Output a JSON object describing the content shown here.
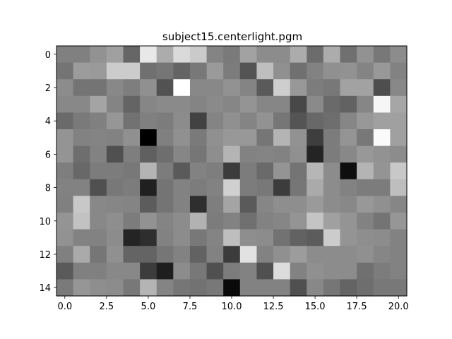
{
  "chart_data": {
    "type": "heatmap",
    "title": "subject15.centerlight.pgm",
    "colormap": "gray",
    "xlabel": "",
    "ylabel": "",
    "xlim": [
      -0.5,
      20.5
    ],
    "ylim": [
      14.5,
      -0.5
    ],
    "xticks": [
      0,
      2.5,
      5,
      7.5,
      10,
      12.5,
      15,
      17.5,
      20
    ],
    "xtick_labels": [
      "0.0",
      "2.5",
      "5.0",
      "7.5",
      "10.0",
      "12.5",
      "15.0",
      "17.5",
      "20.0"
    ],
    "yticks": [
      0,
      2,
      4,
      6,
      8,
      10,
      12,
      14
    ],
    "ytick_labels": [
      "0",
      "2",
      "4",
      "6",
      "8",
      "10",
      "12",
      "14"
    ],
    "grid": false,
    "rows": 15,
    "cols": 21,
    "values": [
      [
        128,
        128,
        146,
        160,
        102,
        232,
        172,
        218,
        202,
        132,
        122,
        162,
        140,
        140,
        172,
        108,
        172,
        112,
        146,
        120,
        140
      ],
      [
        116,
        156,
        154,
        204,
        204,
        112,
        118,
        100,
        120,
        154,
        124,
        84,
        190,
        144,
        112,
        130,
        144,
        146,
        132,
        152,
        130
      ],
      [
        140,
        116,
        116,
        136,
        126,
        144,
        82,
        255,
        136,
        136,
        146,
        132,
        90,
        206,
        152,
        124,
        120,
        162,
        162,
        78,
        136
      ],
      [
        136,
        136,
        164,
        132,
        100,
        134,
        138,
        138,
        132,
        138,
        134,
        148,
        134,
        134,
        72,
        138,
        106,
        98,
        134,
        246,
        166
      ],
      [
        106,
        122,
        128,
        150,
        114,
        128,
        124,
        140,
        66,
        132,
        144,
        132,
        146,
        118,
        84,
        104,
        110,
        134,
        152,
        160,
        160
      ],
      [
        148,
        130,
        132,
        130,
        144,
        0,
        128,
        144,
        122,
        144,
        152,
        152,
        118,
        180,
        146,
        62,
        124,
        148,
        120,
        250,
        160
      ],
      [
        148,
        110,
        130,
        80,
        126,
        96,
        110,
        134,
        118,
        142,
        180,
        130,
        132,
        130,
        144,
        36,
        124,
        136,
        152,
        146,
        140
      ],
      [
        126,
        104,
        124,
        124,
        120,
        180,
        124,
        90,
        130,
        126,
        60,
        124,
        106,
        148,
        116,
        182,
        140,
        14,
        180,
        148,
        200
      ],
      [
        130,
        130,
        80,
        120,
        124,
        32,
        116,
        130,
        124,
        130,
        208,
        124,
        120,
        60,
        118,
        170,
        140,
        130,
        124,
        124,
        190
      ],
      [
        128,
        200,
        136,
        134,
        132,
        92,
        116,
        130,
        46,
        126,
        164,
        90,
        134,
        142,
        142,
        154,
        140,
        136,
        152,
        144,
        134
      ],
      [
        148,
        194,
        136,
        142,
        124,
        146,
        132,
        140,
        178,
        124,
        130,
        112,
        130,
        134,
        148,
        196,
        160,
        148,
        130,
        116,
        150
      ],
      [
        146,
        130,
        130,
        140,
        36,
        46,
        130,
        140,
        120,
        132,
        190,
        142,
        140,
        114,
        98,
        92,
        204,
        148,
        142,
        140,
        130
      ],
      [
        128,
        170,
        118,
        144,
        100,
        100,
        118,
        130,
        98,
        130,
        60,
        226,
        130,
        144,
        156,
        140,
        140,
        140,
        144,
        134,
        130
      ],
      [
        90,
        128,
        128,
        136,
        136,
        60,
        30,
        140,
        120,
        80,
        124,
        130,
        80,
        220,
        130,
        144,
        140,
        140,
        112,
        124,
        130
      ],
      [
        122,
        150,
        142,
        140,
        120,
        180,
        132,
        118,
        114,
        120,
        10,
        130,
        130,
        130,
        80,
        136,
        118,
        100,
        110,
        120,
        120
      ]
    ]
  }
}
